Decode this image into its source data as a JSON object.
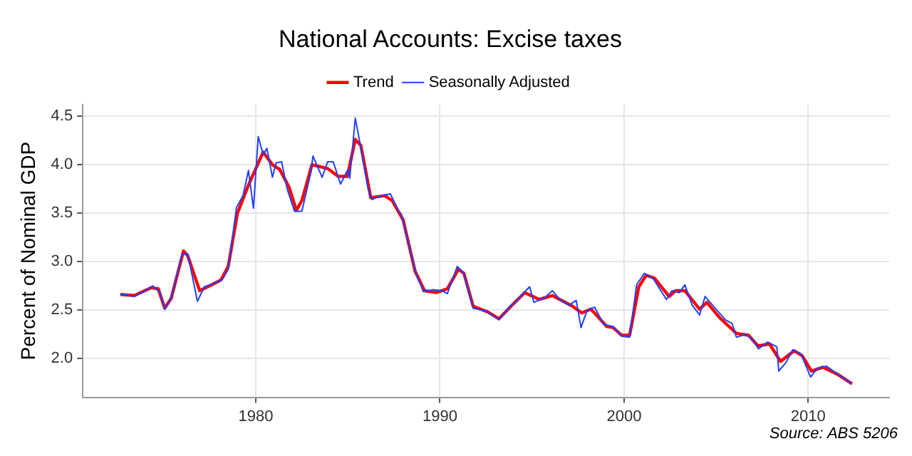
{
  "chart_data": {
    "type": "line",
    "title": "National Accounts: Excise taxes",
    "ylabel": "Percent of Nominal GDP",
    "annotations": [
      "Source: ABS 5206"
    ],
    "legend": "top",
    "grid": true,
    "marker": "none",
    "line_style": "solid",
    "xlim": [
      1970.6,
      2014.4
    ],
    "xticks": [
      1980,
      1990,
      2000,
      2010
    ],
    "ylim": [
      1.6,
      4.62
    ],
    "yticks": [
      {
        "value": 2,
        "label": "2.0"
      },
      {
        "value": 2.5,
        "label": "2.5"
      },
      {
        "value": 3,
        "label": "3.0"
      },
      {
        "value": 3.5,
        "label": "3.5"
      },
      {
        "value": 4,
        "label": "4.0"
      },
      {
        "value": 4.5,
        "label": "4.5"
      }
    ],
    "series": [
      {
        "name": "Trend",
        "color": "#ff0000",
        "x": [
          1972.64,
          1973.4,
          1974.3,
          1974.7,
          1975.05,
          1975.4,
          1976.07,
          1976.3,
          1976.95,
          1977.6,
          1978.1,
          1978.5,
          1979.0,
          1979.6,
          1980.4,
          1980.9,
          1981.3,
          1981.8,
          1982.2,
          1982.5,
          1983.05,
          1983.9,
          1984.47,
          1984.97,
          1985.4,
          1985.7,
          1986.24,
          1987.0,
          1987.4,
          1988.0,
          1988.65,
          1989.16,
          1989.8,
          1990.4,
          1991.0,
          1991.3,
          1991.8,
          1992.6,
          1993.2,
          1993.86,
          1994.6,
          1995.4,
          1996.1,
          1997.2,
          1997.7,
          1998.2,
          1999.06,
          1999.4,
          1999.87,
          2000.3,
          2000.8,
          2001.2,
          2001.65,
          2002.45,
          2002.8,
          2003.3,
          2004.1,
          2004.5,
          2005.2,
          2006.1,
          2006.76,
          2007.27,
          2007.9,
          2008.5,
          2009.24,
          2009.67,
          2010.18,
          2010.8,
          2011.57,
          2012.38
        ],
        "values": [
          2.66,
          2.65,
          2.73,
          2.72,
          2.52,
          2.62,
          3.11,
          3.06,
          2.7,
          2.76,
          2.81,
          2.95,
          3.5,
          3.79,
          4.13,
          4.0,
          3.95,
          3.77,
          3.53,
          3.63,
          4.0,
          3.96,
          3.88,
          3.88,
          4.26,
          4.2,
          3.66,
          3.68,
          3.63,
          3.43,
          2.9,
          2.7,
          2.68,
          2.72,
          2.92,
          2.88,
          2.54,
          2.48,
          2.41,
          2.54,
          2.68,
          2.61,
          2.65,
          2.54,
          2.47,
          2.51,
          2.33,
          2.32,
          2.24,
          2.24,
          2.74,
          2.86,
          2.83,
          2.64,
          2.7,
          2.7,
          2.51,
          2.58,
          2.42,
          2.26,
          2.24,
          2.13,
          2.15,
          1.97,
          2.08,
          2.03,
          1.87,
          1.91,
          1.84,
          1.74
        ]
      },
      {
        "name": "Seasonally Adjusted",
        "color": "#2040ff",
        "x": [
          1972.64,
          1973.4,
          1974.0,
          1974.4,
          1974.8,
          1975.05,
          1975.4,
          1976.0,
          1976.3,
          1976.83,
          1977.2,
          1977.8,
          1978.2,
          1978.5,
          1978.95,
          1979.3,
          1979.6,
          1979.87,
          1980.13,
          1980.4,
          1980.6,
          1980.9,
          1981.1,
          1981.4,
          1981.7,
          1982.1,
          1982.5,
          1983.0,
          1983.1,
          1983.6,
          1983.9,
          1984.2,
          1984.6,
          1985.0,
          1985.1,
          1985.4,
          1985.7,
          1986.1,
          1986.3,
          1986.8,
          1987.3,
          1987.77,
          1987.9,
          1988.7,
          1989.1,
          1989.6,
          1990.1,
          1990.4,
          1990.94,
          1991.3,
          1991.8,
          1992.5,
          1993.2,
          1993.8,
          1994.1,
          1994.4,
          1994.87,
          1995.1,
          1995.7,
          1996.1,
          1996.5,
          1997.0,
          1997.4,
          1997.66,
          1998.0,
          1998.4,
          1998.9,
          1999.4,
          1999.9,
          2000.3,
          2000.68,
          2001.1,
          2001.6,
          2002.3,
          2002.6,
          2003.0,
          2003.3,
          2003.7,
          2004.1,
          2004.4,
          2004.9,
          2005.5,
          2005.87,
          2006.1,
          2006.6,
          2007.0,
          2007.3,
          2007.8,
          2008.3,
          2008.4,
          2008.8,
          2009.16,
          2009.6,
          2010.13,
          2010.5,
          2011.0,
          2011.6,
          2012.38
        ],
        "values": [
          2.67,
          2.64,
          2.7,
          2.75,
          2.68,
          2.51,
          2.62,
          3.08,
          3.08,
          2.59,
          2.74,
          2.78,
          2.82,
          2.92,
          3.56,
          3.68,
          3.94,
          3.55,
          4.29,
          4.1,
          4.17,
          3.87,
          4.02,
          4.03,
          3.75,
          3.52,
          3.52,
          3.93,
          4.09,
          3.87,
          4.03,
          4.03,
          3.8,
          3.95,
          3.86,
          4.48,
          4.18,
          3.75,
          3.64,
          3.68,
          3.7,
          3.52,
          3.49,
          2.88,
          2.69,
          2.71,
          2.7,
          2.67,
          2.95,
          2.88,
          2.52,
          2.49,
          2.4,
          2.54,
          2.58,
          2.65,
          2.74,
          2.58,
          2.63,
          2.7,
          2.61,
          2.55,
          2.6,
          2.32,
          2.5,
          2.53,
          2.35,
          2.33,
          2.23,
          2.22,
          2.76,
          2.88,
          2.82,
          2.61,
          2.7,
          2.68,
          2.76,
          2.55,
          2.45,
          2.64,
          2.53,
          2.4,
          2.36,
          2.22,
          2.25,
          2.19,
          2.1,
          2.17,
          2.12,
          1.87,
          1.96,
          2.09,
          2.05,
          1.81,
          1.9,
          1.92,
          1.84,
          1.74
        ]
      }
    ]
  }
}
